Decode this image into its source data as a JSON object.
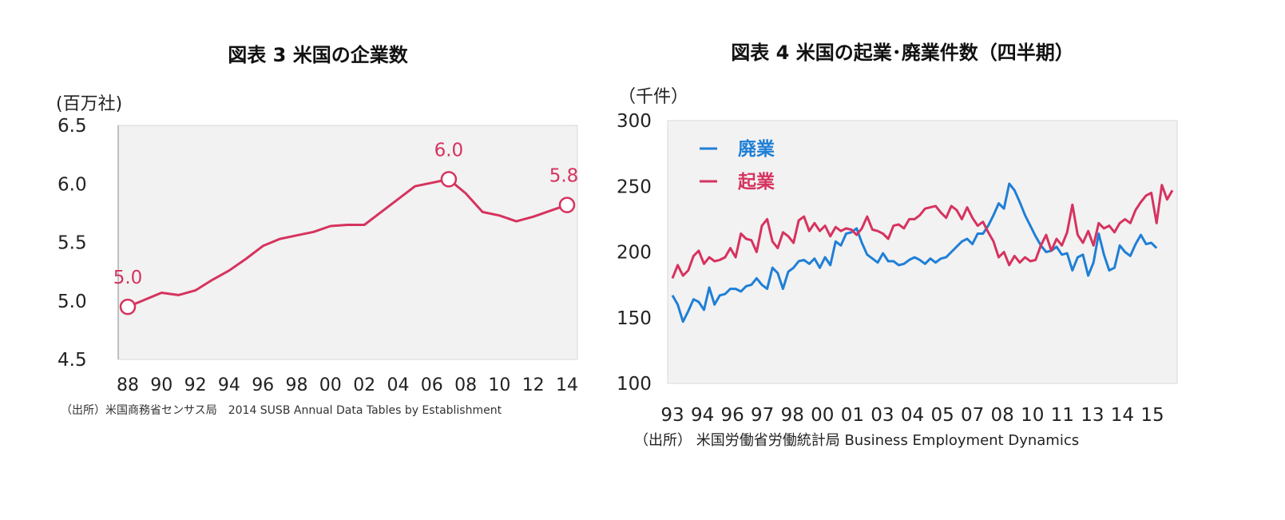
{
  "chart_data": [
    {
      "type": "line",
      "title": "図表 3  米国の企業数",
      "unit_label": "(百万社)",
      "ylim": [
        4.5,
        6.5
      ],
      "y_ticks": [
        "6.5",
        "6.0",
        "5.5",
        "5.0",
        "4.5"
      ],
      "x_tick_labels": [
        "88",
        "90",
        "92",
        "94",
        "96",
        "98",
        "00",
        "02",
        "04",
        "06",
        "08",
        "10",
        "12",
        "14"
      ],
      "grid": false,
      "series": [
        {
          "color": "#d6335f",
          "x": [
            1988,
            1989,
            1990,
            1991,
            1992,
            1993,
            1994,
            1995,
            1996,
            1997,
            1998,
            1999,
            2000,
            2001,
            2002,
            2003,
            2004,
            2005,
            2006,
            2007,
            2008,
            2009,
            2010,
            2011,
            2012,
            2013,
            2014
          ],
          "y": [
            4.95,
            5.01,
            5.07,
            5.05,
            5.09,
            5.18,
            5.26,
            5.36,
            5.47,
            5.53,
            5.56,
            5.59,
            5.64,
            5.65,
            5.65,
            5.76,
            5.87,
            5.98,
            6.01,
            6.04,
            5.92,
            5.76,
            5.73,
            5.68,
            5.72,
            5.77,
            5.82
          ]
        }
      ],
      "data_labels": [
        {
          "x": 1988,
          "y": 4.95,
          "text": "5.0"
        },
        {
          "x": 2007,
          "y": 6.04,
          "text": "6.0"
        },
        {
          "x": 2014,
          "y": 5.82,
          "text": "5.8"
        }
      ],
      "source": "（出所）米国商務省センサス局　2014 SUSB Annual Data Tables by Establishment"
    },
    {
      "type": "line",
      "title": "図表 4  米国の起業･廃業件数（四半期）",
      "unit_label": "（千件）",
      "ylim": [
        100,
        300
      ],
      "y_ticks": [
        "300",
        "250",
        "200",
        "150",
        "100"
      ],
      "x_tick_labels": [
        "93",
        "94",
        "96",
        "97",
        "98",
        "00",
        "01",
        "03",
        "04",
        "05",
        "07",
        "08",
        "10",
        "11",
        "13",
        "14",
        "15"
      ],
      "grid": false,
      "legend": "top-left",
      "series": [
        {
          "name": "廃業",
          "color": "#1f7fd6",
          "values": [
            167,
            160,
            147,
            155,
            164,
            162,
            156,
            173,
            160,
            167,
            168,
            172,
            172,
            170,
            174,
            175,
            180,
            175,
            172,
            188,
            184,
            172,
            185,
            188,
            193,
            194,
            191,
            195,
            188,
            196,
            190,
            208,
            205,
            214,
            215,
            218,
            207,
            198,
            195,
            192,
            199,
            193,
            193,
            190,
            191,
            194,
            196,
            194,
            191,
            195,
            192,
            195,
            196,
            200,
            204,
            208,
            210,
            206,
            214,
            214,
            220,
            228,
            237,
            233,
            252,
            247,
            238,
            228,
            220,
            212,
            205,
            200,
            201,
            204,
            198,
            199,
            186,
            196,
            198,
            182,
            192,
            214,
            198,
            186,
            188,
            205,
            200,
            197,
            206,
            213,
            206,
            207,
            203
          ]
        },
        {
          "name": "起業",
          "color": "#d6335f",
          "values": [
            180,
            190,
            182,
            186,
            197,
            201,
            191,
            196,
            193,
            194,
            196,
            203,
            196,
            214,
            210,
            209,
            200,
            220,
            225,
            208,
            203,
            215,
            212,
            207,
            224,
            227,
            216,
            222,
            216,
            220,
            212,
            219,
            216,
            218,
            217,
            213,
            218,
            227,
            217,
            216,
            214,
            210,
            220,
            221,
            218,
            225,
            225,
            228,
            233,
            234,
            235,
            230,
            226,
            235,
            232,
            225,
            234,
            226,
            220,
            223,
            215,
            208,
            196,
            200,
            190,
            197,
            192,
            196,
            193,
            194,
            205,
            213,
            201,
            210,
            205,
            215,
            236,
            213,
            207,
            216,
            205,
            222,
            218,
            220,
            215,
            222,
            225,
            222,
            232,
            238,
            243,
            245,
            222,
            251,
            240,
            247
          ]
        }
      ],
      "source": "（出所）  米国労働省労働統計局  Business Employment Dynamics"
    }
  ]
}
